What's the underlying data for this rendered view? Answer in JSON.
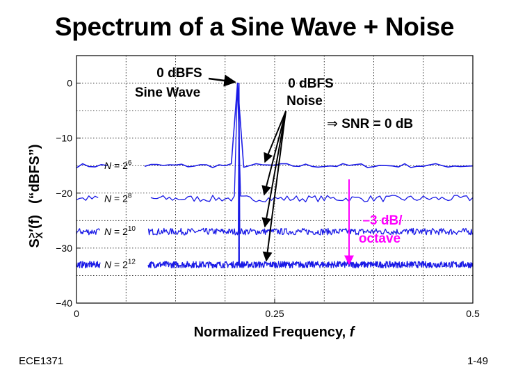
{
  "slide": {
    "title": "Spectrum of a Sine Wave + Noise",
    "footer_left": "ECE1371",
    "footer_right": "1-49"
  },
  "colors": {
    "trace": "#1a1ae6",
    "highlight": "#ff00ff",
    "axis": "#000000",
    "grid": "#000000"
  },
  "chart_data": {
    "type": "line",
    "xlabel_text": "Normalized Frequency, ",
    "xlabel_var": "f",
    "ylabel_parts": {
      "s": "S",
      "sub": "X",
      "rest": "′(f)",
      "units": "(“dBFS”)"
    },
    "xlim": [
      0,
      0.5
    ],
    "ylim": [
      -40,
      5
    ],
    "x_ticks": [
      0,
      0.25,
      0.5
    ],
    "x_tick_labels": [
      "0",
      "0.25",
      "0.5"
    ],
    "x_grid": [
      0.0625,
      0.125,
      0.1875,
      0.25,
      0.3125,
      0.375,
      0.4375
    ],
    "y_ticks": [
      0,
      -10,
      -20,
      -30,
      -40
    ],
    "y_tick_labels": [
      "0",
      "−10",
      "−20",
      "−30",
      "−40"
    ],
    "y_grid": [
      0,
      -5,
      -10,
      -15,
      -20,
      -25,
      -30,
      -35
    ],
    "grid": true,
    "signal_frequency": 0.205,
    "series": [
      {
        "N_label": "N = 2",
        "exp": "6",
        "noise_floor": -15,
        "ripple": 0.4,
        "points": 64
      },
      {
        "N_label": "N = 2",
        "exp": "8",
        "noise_floor": -21,
        "ripple": 0.6,
        "points": 128
      },
      {
        "N_label": "N = 2",
        "exp": "10",
        "noise_floor": -27,
        "ripple": 0.6,
        "points": 512
      },
      {
        "N_label": "N = 2",
        "exp": "12",
        "noise_floor": -33,
        "ripple": 0.6,
        "points": 1024
      }
    ],
    "annotations": {
      "sine_line1": "0 dBFS",
      "sine_line2": "Sine Wave",
      "noise_line1": "0 dBFS",
      "noise_line2": "Noise",
      "snr_arrow": "⇒",
      "snr_text": " SNR = 0 dB",
      "slope_line1": "–3 dB/",
      "slope_line2": "octave"
    }
  }
}
